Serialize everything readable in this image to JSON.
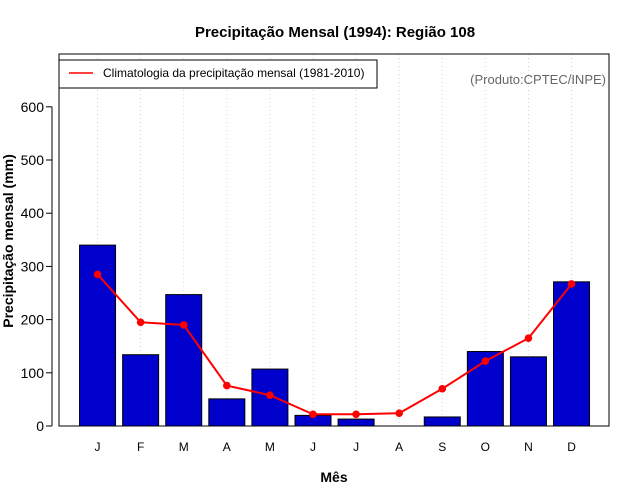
{
  "chart_data": {
    "type": "bar",
    "title": "Precipitação Mensal (1994): Região 108",
    "xlabel": "Mês",
    "ylabel": "Precipitação mensal (mm)",
    "categories": [
      "J",
      "F",
      "M",
      "A",
      "M",
      "J",
      "J",
      "A",
      "S",
      "O",
      "N",
      "D"
    ],
    "yticks": [
      0,
      100,
      200,
      300,
      400,
      500,
      600
    ],
    "ylim": [
      0,
      690
    ],
    "grid": "vertical-dotted",
    "series": [
      {
        "name": "Precipitação mensal (1994)",
        "type": "bar",
        "color": "#0000CD",
        "values": [
          340,
          134,
          247,
          51,
          107,
          20,
          13,
          0,
          17,
          140,
          130,
          271
        ]
      },
      {
        "name": "Climatologia da precipitação mensal (1981-2010)",
        "type": "line",
        "color": "#FF0000",
        "values": [
          285,
          195,
          190,
          76,
          58,
          22,
          22,
          24,
          70,
          122,
          165,
          267
        ]
      }
    ],
    "legend": {
      "label": "Climatologia da precipitação mensal (1981-2010)",
      "placement": "top-left"
    },
    "source": "(Produto:CPTEC/INPE)"
  }
}
